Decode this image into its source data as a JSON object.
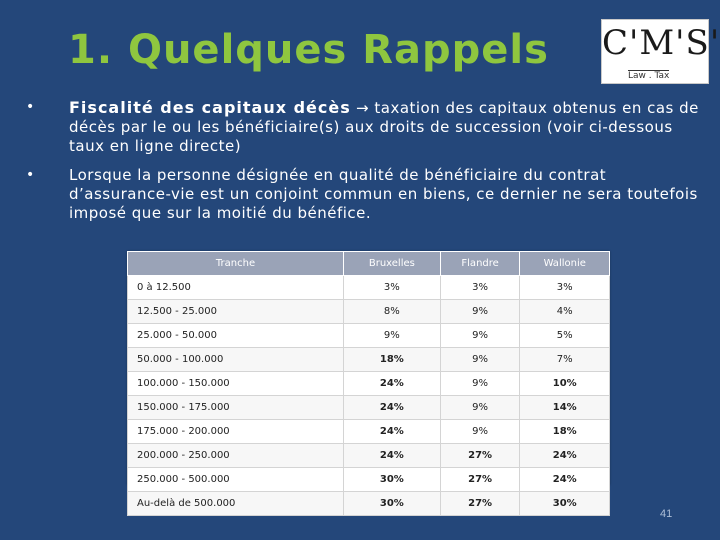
{
  "slide": {
    "title": "1. Quelques Rappels",
    "page_number": "41"
  },
  "logo": {
    "text": "C'M'S'",
    "subtitle": "Law . Tax"
  },
  "bullets": [
    {
      "marker": "•",
      "lead": "Fiscalité des capitaux décès",
      "text": " → taxation des capitaux obtenus en cas de décès par le ou les bénéficiaire(s) aux droits de succession (voir ci-dessous taux en ligne directe)"
    },
    {
      "marker": "•",
      "lead": "",
      "text": "Lorsque la personne désignée en qualité de bénéficiaire du contrat d’assurance-vie est un conjoint commun en biens, ce dernier ne sera toutefois imposé que sur la moitié du bénéfice."
    }
  ],
  "table": {
    "headers": [
      "Tranche",
      "Bruxelles",
      "Flandre",
      "Wallonie"
    ],
    "rows": [
      [
        "0 à 12.500",
        "3%",
        "3%",
        "3%"
      ],
      [
        "12.500 - 25.000",
        "8%",
        "9%",
        "4%"
      ],
      [
        "25.000 - 50.000",
        "9%",
        "9%",
        "5%"
      ],
      [
        "50.000 - 100.000",
        "18%",
        "9%",
        "7%"
      ],
      [
        "100.000 - 150.000",
        "24%",
        "9%",
        "10%"
      ],
      [
        "150.000 - 175.000",
        "24%",
        "9%",
        "14%"
      ],
      [
        "175.000 - 200.000",
        "24%",
        "9%",
        "18%"
      ],
      [
        "200.000 - 250.000",
        "24%",
        "27%",
        "24%"
      ],
      [
        "250.000 - 500.000",
        "30%",
        "27%",
        "24%"
      ],
      [
        "Au-delà de 500.000",
        "30%",
        "27%",
        "30%"
      ]
    ]
  }
}
